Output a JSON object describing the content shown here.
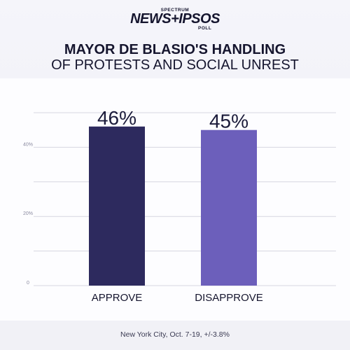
{
  "logo": {
    "small": "SPECTRUM",
    "main": "NEWS+IPSOS",
    "poll": "POLL"
  },
  "chart_data": {
    "type": "bar",
    "title": "MAYOR DE BLASIO'S HANDLING",
    "subtitle": "OF PROTESTS AND SOCIAL UNREST",
    "categories": [
      "APPROVE",
      "DISAPPROVE"
    ],
    "values": [
      46,
      45
    ],
    "data_labels": [
      "46%",
      "45%"
    ],
    "bar_colors": [
      "#2d2a5e",
      "#6c5fbb"
    ],
    "yticks": [
      {
        "value": 0,
        "label": "0"
      },
      {
        "value": 20,
        "label": "20%"
      },
      {
        "value": 40,
        "label": "40%"
      }
    ],
    "gridlines": [
      0,
      10,
      20,
      30,
      40,
      50
    ],
    "ylim": [
      0,
      50
    ],
    "grid": true,
    "legend": "none"
  },
  "footer": {
    "note": "New York City, Oct. 7-19, +/-3.8%"
  }
}
